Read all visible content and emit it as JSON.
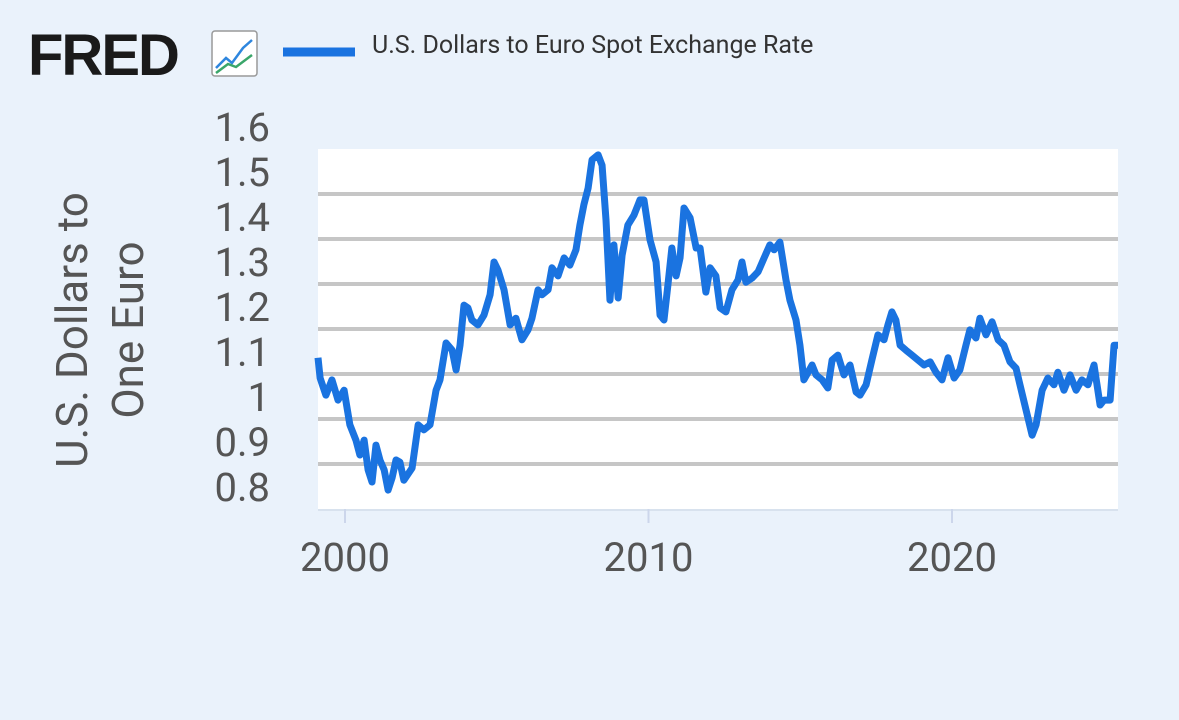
{
  "brand": "FRED",
  "chart_data": {
    "type": "line",
    "y_label": "U.S. Dollars to One Euro",
    "x": [
      1999.11,
      1999.18,
      1999.37,
      1999.57,
      1999.77,
      1999.97,
      2000.16,
      2000.36,
      2000.49,
      2000.63,
      2000.76,
      2000.89,
      2001.02,
      2001.15,
      2001.29,
      2001.42,
      2001.55,
      2001.68,
      2001.81,
      2001.94,
      2002.21,
      2002.41,
      2002.6,
      2002.8,
      2003.0,
      2003.13,
      2003.33,
      2003.53,
      2003.66,
      2003.79,
      2003.92,
      2004.05,
      2004.18,
      2004.38,
      2004.58,
      2004.78,
      2004.91,
      2005.04,
      2005.24,
      2005.44,
      2005.63,
      2005.83,
      2006.03,
      2006.16,
      2006.36,
      2006.49,
      2006.69,
      2006.82,
      2007.02,
      2007.22,
      2007.41,
      2007.61,
      2007.74,
      2007.87,
      2008.01,
      2008.14,
      2008.34,
      2008.47,
      2008.6,
      2008.73,
      2008.86,
      2009.0,
      2009.13,
      2009.32,
      2009.52,
      2009.72,
      2009.85,
      2010.05,
      2010.25,
      2010.38,
      2010.51,
      2010.64,
      2010.77,
      2010.91,
      2011.04,
      2011.17,
      2011.37,
      2011.57,
      2011.7,
      2011.89,
      2012.03,
      2012.22,
      2012.36,
      2012.55,
      2012.75,
      2012.95,
      2013.08,
      2013.21,
      2013.41,
      2013.61,
      2013.81,
      2014.0,
      2014.14,
      2014.33,
      2014.53,
      2014.66,
      2014.86,
      2014.99,
      2015.12,
      2015.26,
      2015.39,
      2015.52,
      2015.72,
      2015.91,
      2016.05,
      2016.24,
      2016.44,
      2016.64,
      2016.84,
      2016.97,
      2017.17,
      2017.36,
      2017.56,
      2017.76,
      2017.89,
      2018.02,
      2018.15,
      2018.29,
      2018.48,
      2018.68,
      2018.88,
      2019.08,
      2019.28,
      2019.47,
      2019.67,
      2019.87,
      2020.07,
      2020.26,
      2020.46,
      2020.59,
      2020.79,
      2020.92,
      2021.12,
      2021.32,
      2021.52,
      2021.71,
      2021.91,
      2022.11,
      2022.24,
      2022.44,
      2022.64,
      2022.77,
      2022.97,
      2023.16,
      2023.36,
      2023.49,
      2023.69,
      2023.89,
      2024.09,
      2024.28,
      2024.48,
      2024.68,
      2024.88,
      2025.01,
      2025.21,
      2025.34,
      2025.47
    ],
    "series": [
      {
        "name": "U.S. Dollars to Euro Spot Exchange Rate",
        "color": "#1a73e0",
        "values": [
          1.136,
          1.091,
          1.053,
          1.087,
          1.042,
          1.064,
          0.987,
          0.953,
          0.92,
          0.953,
          0.887,
          0.86,
          0.942,
          0.909,
          0.887,
          0.842,
          0.869,
          0.909,
          0.904,
          0.864,
          0.891,
          0.987,
          0.976,
          0.987,
          1.064,
          1.087,
          1.169,
          1.153,
          1.109,
          1.164,
          1.253,
          1.247,
          1.22,
          1.209,
          1.231,
          1.276,
          1.349,
          1.331,
          1.287,
          1.209,
          1.224,
          1.176,
          1.198,
          1.224,
          1.287,
          1.276,
          1.287,
          1.336,
          1.318,
          1.358,
          1.342,
          1.376,
          1.431,
          1.476,
          1.513,
          1.576,
          1.587,
          1.564,
          1.442,
          1.264,
          1.387,
          1.269,
          1.364,
          1.431,
          1.453,
          1.487,
          1.487,
          1.398,
          1.349,
          1.231,
          1.22,
          1.298,
          1.38,
          1.318,
          1.358,
          1.469,
          1.447,
          1.38,
          1.38,
          1.282,
          1.336,
          1.318,
          1.247,
          1.238,
          1.287,
          1.309,
          1.349,
          1.304,
          1.313,
          1.327,
          1.358,
          1.387,
          1.376,
          1.393,
          1.309,
          1.264,
          1.22,
          1.164,
          1.087,
          1.104,
          1.12,
          1.098,
          1.087,
          1.069,
          1.131,
          1.142,
          1.098,
          1.12,
          1.06,
          1.053,
          1.076,
          1.131,
          1.187,
          1.176,
          1.209,
          1.238,
          1.22,
          1.164,
          1.153,
          1.142,
          1.131,
          1.12,
          1.127,
          1.104,
          1.087,
          1.136,
          1.091,
          1.109,
          1.164,
          1.198,
          1.18,
          1.224,
          1.187,
          1.216,
          1.176,
          1.164,
          1.127,
          1.113,
          1.076,
          1.02,
          0.964,
          0.987,
          1.064,
          1.091,
          1.076,
          1.104,
          1.064,
          1.098,
          1.064,
          1.087,
          1.076,
          1.12,
          1.031,
          1.042,
          1.042,
          1.164,
          1.164
        ]
      }
    ],
    "xlim": [
      1999.11,
      2025.47
    ],
    "xticks": [
      2000,
      2010,
      2020
    ],
    "ylim": [
      0.8,
      1.6
    ],
    "yticks": [
      0.8,
      0.9,
      1.0,
      1.1,
      1.2,
      1.3,
      1.4,
      1.5,
      1.6
    ],
    "grid": true
  }
}
